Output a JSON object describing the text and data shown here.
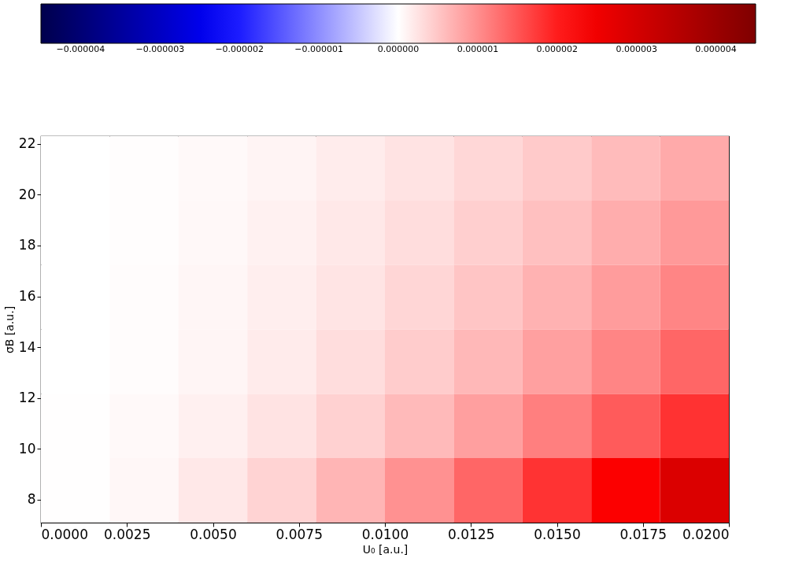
{
  "chart_data": {
    "type": "heatmap",
    "xlabel": "U₀ [a.u.]",
    "ylabel": "σB [a.u.]",
    "x": [
      0.001,
      0.003,
      0.005,
      0.007,
      0.009,
      0.011,
      0.013,
      0.015,
      0.017,
      0.019
    ],
    "y": [
      21.03,
      18.5,
      15.97,
      13.43,
      10.9,
      8.37
    ],
    "cells": [
      [
        2e-09,
        2e-08,
        5e-08,
        1e-07,
        1.7e-07,
        2.5e-07,
        3.5e-07,
        4.7e-07,
        6e-07,
        7.5e-07
      ],
      [
        3e-09,
        2e-08,
        6e-08,
        1.2e-07,
        2e-07,
        3e-07,
        4.2e-07,
        5.6e-07,
        7.2e-07,
        9e-07
      ],
      [
        3e-09,
        3e-08,
        8e-08,
        1.5e-07,
        2.4e-07,
        3.6e-07,
        5.1e-07,
        6.8e-07,
        8.7e-07,
        1.08e-06
      ],
      [
        4e-09,
        3e-08,
        9e-08,
        1.8e-07,
        3e-07,
        4.5e-07,
        6.3e-07,
        8.4e-07,
        1.08e-06,
        1.35e-06
      ],
      [
        5e-09,
        5e-08,
        1.3e-07,
        2.5e-07,
        4.1e-07,
        6.1e-07,
        8.5e-07,
        1.13e-06,
        1.45e-06,
        1.81e-06
      ],
      [
        8e-09,
        7e-08,
        2e-07,
        3.9e-07,
        6.5e-07,
        9.7e-07,
        1.35e-06,
        1.8e-06,
        2.31e-06,
        2.89e-06
      ]
    ],
    "xlim": [
      0,
      0.02
    ],
    "ylim": [
      7.1,
      22.3
    ],
    "xticks": [
      {
        "value": 0,
        "label": "0.0000"
      },
      {
        "value": 0.0025,
        "label": "0.0025"
      },
      {
        "value": 0.005,
        "label": "0.0050"
      },
      {
        "value": 0.0075,
        "label": "0.0075"
      },
      {
        "value": 0.01,
        "label": "0.0100"
      },
      {
        "value": 0.0125,
        "label": "0.0125"
      },
      {
        "value": 0.015,
        "label": "0.0150"
      },
      {
        "value": 0.0175,
        "label": "0.0175"
      },
      {
        "value": 0.02,
        "label": "0.0200"
      }
    ],
    "yticks": [
      8,
      10,
      12,
      14,
      16,
      18,
      20,
      22
    ],
    "clim": [
      -4.5e-06,
      4.5e-06
    ],
    "cticks": [
      {
        "value": -4e-06,
        "label": "−0.000004"
      },
      {
        "value": -3e-06,
        "label": "−0.000003"
      },
      {
        "value": -2e-06,
        "label": "−0.000002"
      },
      {
        "value": -1e-06,
        "label": "−0.000001"
      },
      {
        "value": 0,
        "label": "0.000000"
      },
      {
        "value": 1e-06,
        "label": "0.000001"
      },
      {
        "value": 2e-06,
        "label": "0.000002"
      },
      {
        "value": 3e-06,
        "label": "0.000003"
      },
      {
        "value": 4e-06,
        "label": "0.000004"
      }
    ],
    "colors": [
      "#00004c",
      "#0000ff",
      "#ffffff",
      "#ff0000",
      "#7f0000"
    ],
    "grid": false
  }
}
